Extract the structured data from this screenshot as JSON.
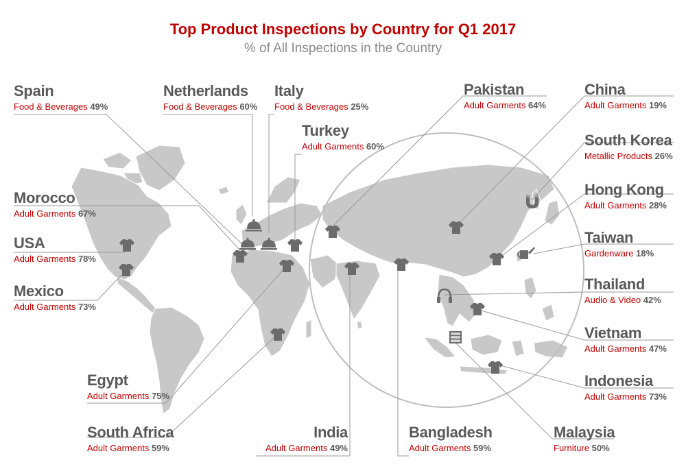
{
  "title": "Top Product Inspections by Country for Q1 2017",
  "subtitle": "% of All Inspections in the Country",
  "colors": {
    "title": "#c00000",
    "category": "#c00000",
    "country": "#595959",
    "land": "#c8c8c8",
    "marker": "#6b6b6b",
    "leader": "#9a9a9a"
  },
  "countries": {
    "spain": {
      "name": "Spain",
      "category": "Food & Beverages",
      "percent": "49%",
      "icon": "food-cloche-icon"
    },
    "netherlands": {
      "name": "Netherlands",
      "category": "Food & Beverages",
      "percent": "60%",
      "icon": "food-cloche-icon"
    },
    "italy": {
      "name": "Italy",
      "category": "Food & Beverages",
      "percent": "25%",
      "icon": "food-cloche-icon"
    },
    "turkey": {
      "name": "Turkey",
      "category": "Adult Garments",
      "percent": "60%",
      "icon": "tshirt-icon"
    },
    "morocco": {
      "name": "Morocco",
      "category": "Adult Garments",
      "percent": "67%",
      "icon": "tshirt-icon"
    },
    "usa": {
      "name": "USA",
      "category": "Adult Garments",
      "percent": "78%",
      "icon": "tshirt-icon"
    },
    "mexico": {
      "name": "Mexico",
      "category": "Adult Garments",
      "percent": "73%",
      "icon": "tshirt-icon"
    },
    "egypt": {
      "name": "Egypt",
      "category": "Adult Garments",
      "percent": "75%",
      "icon": "tshirt-icon"
    },
    "south_africa": {
      "name": "South Africa",
      "category": "Adult Garments",
      "percent": "59%",
      "icon": "tshirt-icon"
    },
    "india": {
      "name": "India",
      "category": "Adult Garments",
      "percent": "49%",
      "icon": "tshirt-icon"
    },
    "bangladesh": {
      "name": "Bangladesh",
      "category": "Adult Garments",
      "percent": "59%",
      "icon": "tshirt-icon"
    },
    "pakistan": {
      "name": "Pakistan",
      "category": "Adult Garments",
      "percent": "64%",
      "icon": "tshirt-icon"
    },
    "china": {
      "name": "China",
      "category": "Adult Garments",
      "percent": "19%",
      "icon": "tshirt-icon"
    },
    "south_korea": {
      "name": "South Korea",
      "category": "Metallic Products",
      "percent": "26%",
      "icon": "magnet-icon"
    },
    "hong_kong": {
      "name": "Hong Kong",
      "category": "Adult Garments",
      "percent": "28%",
      "icon": "tshirt-icon"
    },
    "taiwan": {
      "name": "Taiwan",
      "category": "Gardenware",
      "percent": "18%",
      "icon": "watering-can-icon"
    },
    "thailand": {
      "name": "Thailand",
      "category": "Audio & Video",
      "percent": "42%",
      "icon": "headphones-icon"
    },
    "vietnam": {
      "name": "Vietnam",
      "category": "Adult Garments",
      "percent": "47%",
      "icon": "tshirt-icon"
    },
    "indonesia": {
      "name": "Indonesia",
      "category": "Adult Garments",
      "percent": "73%",
      "icon": "tshirt-icon"
    },
    "malaysia": {
      "name": "Malaysia",
      "category": "Furniture",
      "percent": "50%",
      "icon": "cabinet-icon"
    }
  }
}
